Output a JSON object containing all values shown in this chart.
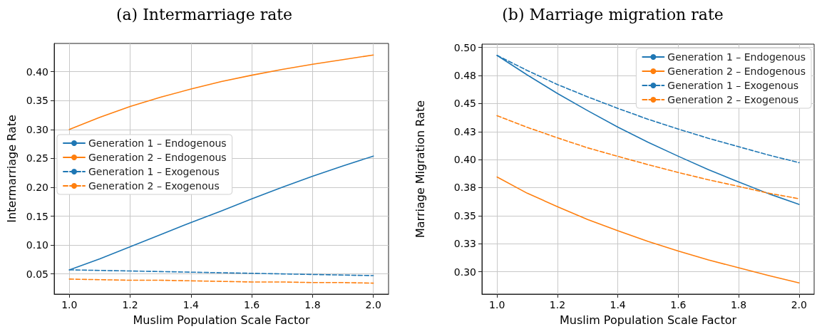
{
  "chart_data": [
    {
      "type": "line",
      "title": "(a) Intermarriage rate",
      "xlabel": "Muslim Population Scale Factor",
      "ylabel": "Intermarriage Rate",
      "x": [
        1.0,
        1.1,
        1.2,
        1.3,
        1.4,
        1.5,
        1.6,
        1.7,
        1.8,
        1.9,
        2.0
      ],
      "xlim": [
        0.95,
        2.05
      ],
      "xticks": [
        {
          "value": 1,
          "label": "1.0"
        },
        {
          "value": 1.2,
          "label": "1.2"
        },
        {
          "value": 1.4,
          "label": "1.4"
        },
        {
          "value": 1.6,
          "label": "1.6"
        },
        {
          "value": 1.8,
          "label": "1.8"
        },
        {
          "value": 2,
          "label": "2.0"
        }
      ],
      "ylim": [
        0.015,
        0.449
      ],
      "yticks": [
        {
          "value": 0.05,
          "label": "0.05"
        },
        {
          "value": 0.1,
          "label": "0.10"
        },
        {
          "value": 0.15,
          "label": "0.15"
        },
        {
          "value": 0.2,
          "label": "0.20"
        },
        {
          "value": 0.25,
          "label": "0.25"
        },
        {
          "value": 0.3,
          "label": "0.30"
        },
        {
          "value": 0.35,
          "label": "0.35"
        },
        {
          "value": 0.4,
          "label": "0.40"
        }
      ],
      "grid": true,
      "legend": "center left",
      "marker": "none",
      "series": [
        {
          "name": "Generation 1 – Endogenous",
          "color": "#1f77b4",
          "line_style": "solid",
          "values": [
            0.057,
            0.076,
            0.097,
            0.118,
            0.139,
            0.159,
            0.18,
            0.2,
            0.219,
            0.237,
            0.254
          ]
        },
        {
          "name": "Generation 2 – Endogenous",
          "color": "#ff7f0e",
          "line_style": "solid",
          "values": [
            0.3,
            0.321,
            0.34,
            0.356,
            0.37,
            0.383,
            0.394,
            0.404,
            0.413,
            0.421,
            0.429
          ]
        },
        {
          "name": "Generation 1 – Exogenous",
          "color": "#1f77b4",
          "line_style": "dashed",
          "values": [
            0.057,
            0.056,
            0.055,
            0.054,
            0.053,
            0.052,
            0.051,
            0.05,
            0.049,
            0.048,
            0.047
          ]
        },
        {
          "name": "Generation 2 – Exogenous",
          "color": "#ff7f0e",
          "line_style": "dashed",
          "values": [
            0.041,
            0.04,
            0.039,
            0.039,
            0.038,
            0.037,
            0.036,
            0.036,
            0.035,
            0.035,
            0.034
          ]
        }
      ]
    },
    {
      "type": "line",
      "title": "(b) Marriage migration rate",
      "xlabel": "Muslim Population Scale Factor",
      "ylabel": "Marriage Migration Rate",
      "x": [
        1.0,
        1.1,
        1.2,
        1.3,
        1.4,
        1.5,
        1.6,
        1.7,
        1.8,
        1.9,
        2.0
      ],
      "xlim": [
        0.95,
        2.05
      ],
      "xticks": [
        {
          "value": 1,
          "label": "1.0"
        },
        {
          "value": 1.2,
          "label": "1.2"
        },
        {
          "value": 1.4,
          "label": "1.4"
        },
        {
          "value": 1.6,
          "label": "1.6"
        },
        {
          "value": 1.8,
          "label": "1.8"
        },
        {
          "value": 2,
          "label": "2.0"
        }
      ],
      "ylim": [
        0.28,
        0.503
      ],
      "yticks": [
        {
          "value": 0.3,
          "label": "0.30"
        },
        {
          "value": 0.325,
          "label": "0.33"
        },
        {
          "value": 0.35,
          "label": "0.35"
        },
        {
          "value": 0.375,
          "label": "0.38"
        },
        {
          "value": 0.4,
          "label": "0.40"
        },
        {
          "value": 0.425,
          "label": "0.43"
        },
        {
          "value": 0.45,
          "label": "0.45"
        },
        {
          "value": 0.475,
          "label": "0.48"
        },
        {
          "value": 0.5,
          "label": "0.50"
        }
      ],
      "grid": true,
      "legend": "top right",
      "marker": "none",
      "series": [
        {
          "name": "Generation 1 – Endogenous",
          "color": "#1f77b4",
          "line_style": "solid",
          "values": [
            0.493,
            0.4755,
            0.459,
            0.4437,
            0.429,
            0.4155,
            0.403,
            0.391,
            0.38,
            0.3695,
            0.36
          ]
        },
        {
          "name": "Generation 2 – Endogenous",
          "color": "#ff7f0e",
          "line_style": "solid",
          "values": [
            0.3845,
            0.37,
            0.358,
            0.3465,
            0.3365,
            0.327,
            0.3185,
            0.3105,
            0.3035,
            0.2965,
            0.29
          ]
        },
        {
          "name": "Generation 1 – Exogenous",
          "color": "#1f77b4",
          "line_style": "dashed",
          "values": [
            0.493,
            0.4795,
            0.467,
            0.456,
            0.4457,
            0.436,
            0.4273,
            0.419,
            0.4115,
            0.404,
            0.3973
          ]
        },
        {
          "name": "Generation 2 – Exogenous",
          "color": "#ff7f0e",
          "line_style": "dashed",
          "values": [
            0.4392,
            0.4288,
            0.4194,
            0.4105,
            0.4029,
            0.3955,
            0.3885,
            0.382,
            0.3761,
            0.37,
            0.3651
          ]
        }
      ]
    }
  ]
}
